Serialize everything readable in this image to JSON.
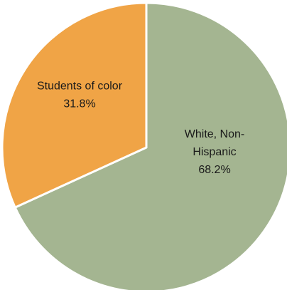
{
  "chart_data": {
    "type": "pie",
    "title": "",
    "slices": [
      {
        "label_lines": [
          "White, Non-",
          "Hispanic"
        ],
        "value": 68.2,
        "value_label": "68.2%",
        "color": "#a4b591"
      },
      {
        "label_lines": [
          "Students of color"
        ],
        "value": 31.8,
        "value_label": "31.8%",
        "color": "#f0a446"
      }
    ],
    "start_angle": "12 o'clock",
    "direction": "clockwise",
    "slice_border_color": "#ffffff",
    "legend": "none"
  }
}
